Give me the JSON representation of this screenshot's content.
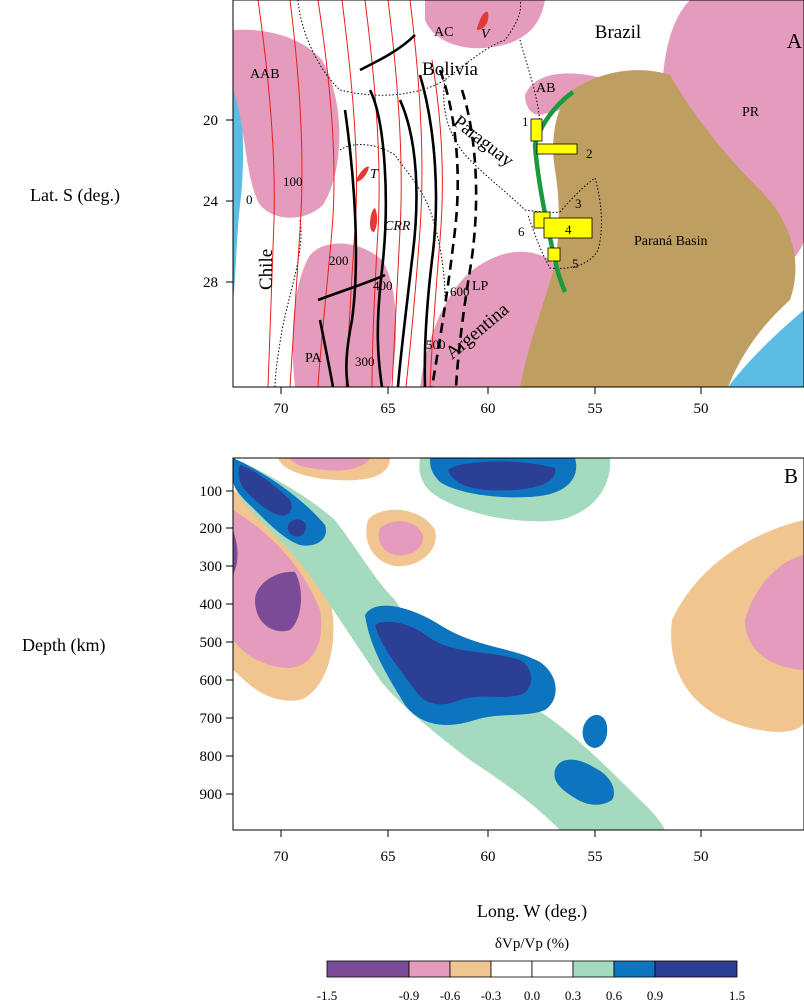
{
  "panel_a": {
    "letter": "A",
    "ylabel": "Lat. S (deg.)",
    "yticks": [
      "20",
      "24",
      "28"
    ],
    "xticks": [
      "70",
      "65",
      "60",
      "55",
      "50"
    ],
    "countries": {
      "brazil": "Brazil",
      "bolivia": "Bolivia",
      "paraguay": "Paraguay",
      "chile": "Chile",
      "argentina": "Argentina"
    },
    "regions": {
      "ac": "AC",
      "v": "V",
      "aab": "AAB",
      "ab": "AB",
      "pr": "PR",
      "t": "T",
      "crr": "CRR",
      "lp": "LP",
      "pa": "PA",
      "parana": "Paraná Basin"
    },
    "contours": [
      "0",
      "100",
      "200",
      "300",
      "400",
      "500",
      "600"
    ],
    "stations": [
      "1",
      "2",
      "3",
      "4",
      "5",
      "6"
    ],
    "colors": {
      "craton": "#e59bbb",
      "basin": "#bf9f61",
      "ocean": "#5bbde4",
      "slab_contour": "#e8201e",
      "volcano": "#e33a34",
      "suture": "#1a9a3a",
      "station": "#ffff00"
    }
  },
  "panel_b": {
    "letter": "B",
    "ylabel": "Depth (km)",
    "yticks": [
      "100",
      "200",
      "300",
      "400",
      "500",
      "600",
      "700",
      "800",
      "900"
    ],
    "xticks": [
      "70",
      "65",
      "60",
      "55",
      "50"
    ],
    "xlabel": "Long. W (deg.)"
  },
  "colorbar": {
    "title": "δVp/Vp (%)",
    "ticks": [
      "-1.5",
      "-0.9",
      "-0.6",
      "-0.3",
      "0.0",
      "0.3",
      "0.6",
      "0.9",
      "1.5"
    ],
    "colors": [
      "#7b4b97",
      "#e59bbb",
      "#f0c58f",
      "#ffffff",
      "#ffffff",
      "#a4dbbe",
      "#0d74c0",
      "#2b3f94"
    ]
  }
}
